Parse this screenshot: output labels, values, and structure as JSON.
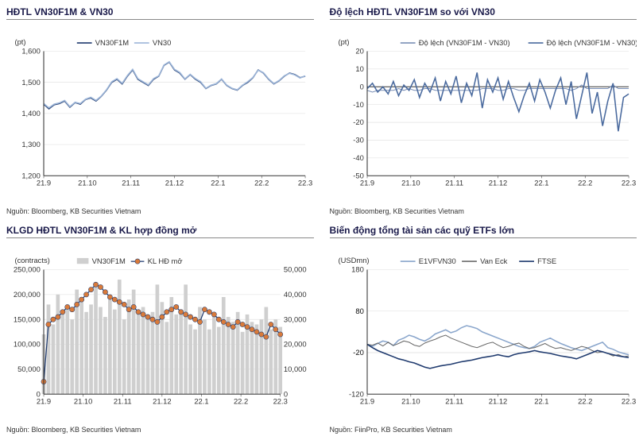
{
  "panels": {
    "topLeft": {
      "title": "HĐTL VN30F1M & VN30",
      "source": "Nguồn: Bloomberg, KB Securities Vietnam",
      "chart": {
        "type": "line",
        "ylabel": "(pt)",
        "xticks": [
          "21.9",
          "21.10",
          "21.11",
          "21.12",
          "22.1",
          "22.2",
          "22.3"
        ],
        "ylim": [
          1200,
          1600
        ],
        "ytick_step": 100,
        "grid_color": "#dddddd",
        "series": [
          {
            "name": "VN30F1M",
            "color": "#1f3a6e",
            "width": 1.5,
            "data": [
              1430,
              1415,
              1428,
              1432,
              1440,
              1420,
              1435,
              1430,
              1445,
              1450,
              1440,
              1455,
              1475,
              1500,
              1510,
              1495,
              1520,
              1540,
              1510,
              1500,
              1490,
              1510,
              1520,
              1555,
              1565,
              1540,
              1530,
              1510,
              1525,
              1510,
              1500,
              1480,
              1490,
              1495,
              1510,
              1490,
              1480,
              1475,
              1490,
              1500,
              1515,
              1540,
              1530,
              1510,
              1495,
              1505,
              1520,
              1530,
              1525,
              1515,
              1520
            ]
          },
          {
            "name": "VN30",
            "color": "#9db6d9",
            "width": 1.5,
            "data": [
              1432,
              1418,
              1430,
              1434,
              1442,
              1422,
              1436,
              1432,
              1446,
              1452,
              1442,
              1456,
              1476,
              1502,
              1512,
              1497,
              1522,
              1542,
              1512,
              1502,
              1492,
              1512,
              1521,
              1556,
              1566,
              1542,
              1532,
              1511,
              1526,
              1512,
              1502,
              1481,
              1491,
              1496,
              1511,
              1491,
              1481,
              1476,
              1491,
              1502,
              1516,
              1539,
              1531,
              1511,
              1496,
              1506,
              1521,
              1529,
              1524,
              1514,
              1521
            ]
          }
        ]
      }
    },
    "topRight": {
      "title": "Độ lệch HĐTL VN30F1M so với VN30",
      "source": "Nguồn: Bloomberg, KB Securities Vietnam",
      "chart": {
        "type": "line",
        "ylabel": "(pt)",
        "xticks": [
          "21.9",
          "21.10",
          "21.11",
          "21.12",
          "22.1",
          "22.2",
          "22.3"
        ],
        "ylim": [
          -50,
          20
        ],
        "ytick_step": 10,
        "grid_color": "#dddddd",
        "zero_line_color": "#333333",
        "series": [
          {
            "name": "Độ lệch (VN30F1M - VN30)",
            "color": "#7a8fb6",
            "width": 1,
            "data": [
              -2,
              -3,
              -2,
              -2,
              -2,
              -2,
              -1,
              -2,
              -1,
              -2,
              -2,
              -1,
              -1,
              -2,
              -2,
              -2,
              -2,
              -2,
              -2,
              -2,
              -2,
              -2,
              -1,
              -1,
              -1,
              -2,
              -2,
              -1,
              -1,
              -2,
              -2,
              -1,
              -1,
              -1,
              -1,
              -1,
              -1,
              -1,
              -1,
              -2,
              -1,
              1,
              -1,
              -1,
              -1,
              -1,
              -1,
              1,
              -1,
              -1,
              -1
            ]
          },
          {
            "name": "Độ lệch (VN30F1M - VN30)",
            "color": "#4a6a9e",
            "width": 1.5,
            "data": [
              -1,
              2,
              -3,
              0,
              -4,
              3,
              -5,
              1,
              -2,
              4,
              -6,
              2,
              -3,
              5,
              -8,
              3,
              -4,
              6,
              -9,
              2,
              -5,
              8,
              -12,
              4,
              -3,
              5,
              -7,
              3,
              -6,
              -14,
              -5,
              2,
              -8,
              4,
              -3,
              -12,
              -2,
              5,
              -10,
              3,
              -18,
              -5,
              8,
              -15,
              -3,
              -22,
              -8,
              2,
              -25,
              -6,
              -4
            ]
          }
        ]
      }
    },
    "bottomLeft": {
      "title": "KLGD HĐTL VN30F1M & KL hợp đồng mở",
      "source": "Nguồn: Bloomberg, KB Securities Vietnam",
      "chart": {
        "type": "combo",
        "ylabel": "(contracts)",
        "xticks": [
          "21.9",
          "21.10",
          "21.11",
          "21.12",
          "22.1",
          "22.2",
          "22.3"
        ],
        "ylim": [
          0,
          250000
        ],
        "ytick_step": 50000,
        "ylim2": [
          0,
          50000
        ],
        "ytick_step2": 10000,
        "grid_color": "#dddddd",
        "bars": {
          "name": "VN30F1M",
          "color": "#cfcfcf",
          "data": [
            120000,
            180000,
            140000,
            200000,
            160000,
            170000,
            150000,
            210000,
            195000,
            165000,
            180000,
            215000,
            175000,
            155000,
            190000,
            170000,
            230000,
            150000,
            190000,
            210000,
            165000,
            175000,
            150000,
            165000,
            220000,
            185000,
            145000,
            195000,
            160000,
            170000,
            220000,
            140000,
            130000,
            175000,
            150000,
            130000,
            160000,
            135000,
            195000,
            155000,
            145000,
            165000,
            125000,
            160000,
            145000,
            140000,
            150000,
            175000,
            130000,
            150000,
            135000
          ]
        },
        "linemarker": {
          "name": "KL HĐ mở",
          "line_color": "#1f3a6e",
          "marker_color": "#d97a3a",
          "marker_size": 3,
          "data": [
            5000,
            28000,
            30000,
            31000,
            33000,
            35000,
            34000,
            36000,
            38000,
            40000,
            42000,
            44000,
            43000,
            41000,
            39000,
            38000,
            37000,
            36000,
            34000,
            35000,
            33000,
            32000,
            31000,
            30000,
            29000,
            31000,
            33000,
            34000,
            35000,
            33000,
            32000,
            31000,
            30000,
            29000,
            34000,
            33000,
            32000,
            30000,
            29000,
            28000,
            27000,
            29000,
            28000,
            27000,
            26000,
            25000,
            24000,
            23000,
            28000,
            26000,
            24000
          ]
        }
      }
    },
    "bottomRight": {
      "title": "Biến động tổng tài sản các quỹ ETFs lớn",
      "source": "Nguồn: FiinPro, KB Securities Vietnam",
      "chart": {
        "type": "line",
        "ylabel": "(USDmn)",
        "xticks": [
          "21.9",
          "21.10",
          "21.11",
          "21.12",
          "22.1",
          "22.2",
          "22.3"
        ],
        "ylim": [
          -120,
          180
        ],
        "ytick_step": 100,
        "yticks_extra": [
          -20,
          80
        ],
        "grid_color": "#dddddd",
        "series": [
          {
            "name": "E1VFVN30",
            "color": "#8aa6cc",
            "width": 1.5,
            "data": [
              0,
              -5,
              2,
              8,
              5,
              -3,
              10,
              15,
              22,
              18,
              12,
              8,
              15,
              25,
              30,
              35,
              28,
              32,
              40,
              45,
              42,
              38,
              30,
              25,
              20,
              15,
              10,
              5,
              0,
              -5,
              -8,
              -10,
              -5,
              5,
              10,
              15,
              8,
              2,
              -3,
              -8,
              -12,
              -15,
              -10,
              -5,
              0,
              5,
              -8,
              -12,
              -18,
              -22,
              -25
            ]
          },
          {
            "name": "Van Eck",
            "color": "#6b6b6b",
            "width": 1,
            "data": [
              0,
              -2,
              3,
              -4,
              5,
              -3,
              2,
              8,
              5,
              -2,
              -5,
              3,
              8,
              12,
              18,
              22,
              15,
              10,
              5,
              0,
              -5,
              -8,
              -3,
              2,
              5,
              -2,
              -8,
              -5,
              0,
              3,
              -5,
              -10,
              -8,
              -3,
              2,
              -5,
              -10,
              -8,
              -12,
              -15,
              -10,
              -5,
              -8,
              -15,
              -20,
              -18,
              -22,
              -28,
              -25,
              -30,
              -28
            ]
          },
          {
            "name": "FTSE",
            "color": "#1f3a6e",
            "width": 1.5,
            "data": [
              0,
              -8,
              -15,
              -20,
              -25,
              -30,
              -35,
              -38,
              -42,
              -45,
              -50,
              -55,
              -58,
              -55,
              -52,
              -50,
              -48,
              -45,
              -42,
              -40,
              -38,
              -35,
              -32,
              -30,
              -28,
              -25,
              -28,
              -30,
              -25,
              -22,
              -20,
              -18,
              -15,
              -18,
              -20,
              -22,
              -25,
              -28,
              -30,
              -32,
              -35,
              -30,
              -25,
              -20,
              -15,
              -18,
              -22,
              -25,
              -28,
              -30,
              -32
            ]
          }
        ]
      }
    }
  },
  "colors": {
    "title": "#1a1a4a",
    "axis": "#333333"
  }
}
